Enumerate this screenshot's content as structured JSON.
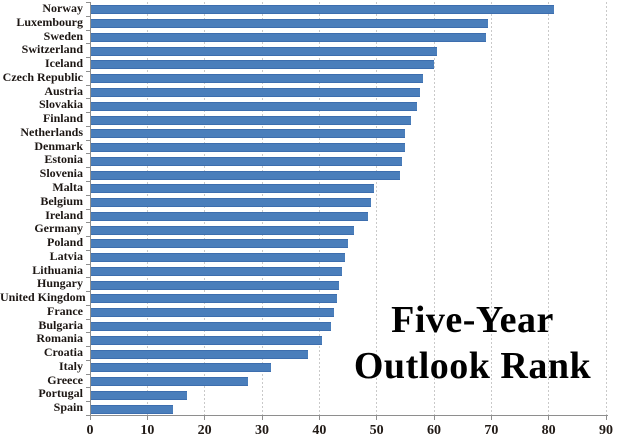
{
  "title": {
    "line1": "Five-Year",
    "line2": "Outlook Rank"
  },
  "chart_data": {
    "type": "bar",
    "orientation": "horizontal",
    "title": "Five-Year Outlook Rank",
    "xlabel": "",
    "ylabel": "",
    "xlim": [
      0,
      90
    ],
    "xticks": [
      0,
      10,
      20,
      30,
      40,
      50,
      60,
      70,
      80,
      90
    ],
    "grid": "vertical-dotted",
    "legend": "none",
    "categories": [
      "Norway",
      "Luxembourg",
      "Sweden",
      "Switzerland",
      "Iceland",
      "Czech Republic",
      "Austria",
      "Slovakia",
      "Finland",
      "Netherlands",
      "Denmark",
      "Estonia",
      "Slovenia",
      "Malta",
      "Belgium",
      "Ireland",
      "Germany",
      "Poland",
      "Latvia",
      "Lithuania",
      "Hungary",
      "United Kingdom",
      "France",
      "Bulgaria",
      "Romania",
      "Croatia",
      "Italy",
      "Greece",
      "Portugal",
      "Spain"
    ],
    "values": [
      81,
      69.5,
      69,
      60.5,
      60,
      58,
      57.5,
      57,
      56,
      55,
      55,
      54.5,
      54,
      49.5,
      49,
      48.5,
      46,
      45,
      44.5,
      44,
      43.5,
      43,
      42.5,
      42,
      40.5,
      38,
      31.5,
      27.5,
      17,
      14.5
    ],
    "bar_color": "#4a7ebb",
    "bar_border_color": "#3d6eae",
    "gridline_color": "#c9c9c9",
    "axis_color": "#8e8e8e",
    "text_color": "#1c1613",
    "title_color": "#000000"
  }
}
